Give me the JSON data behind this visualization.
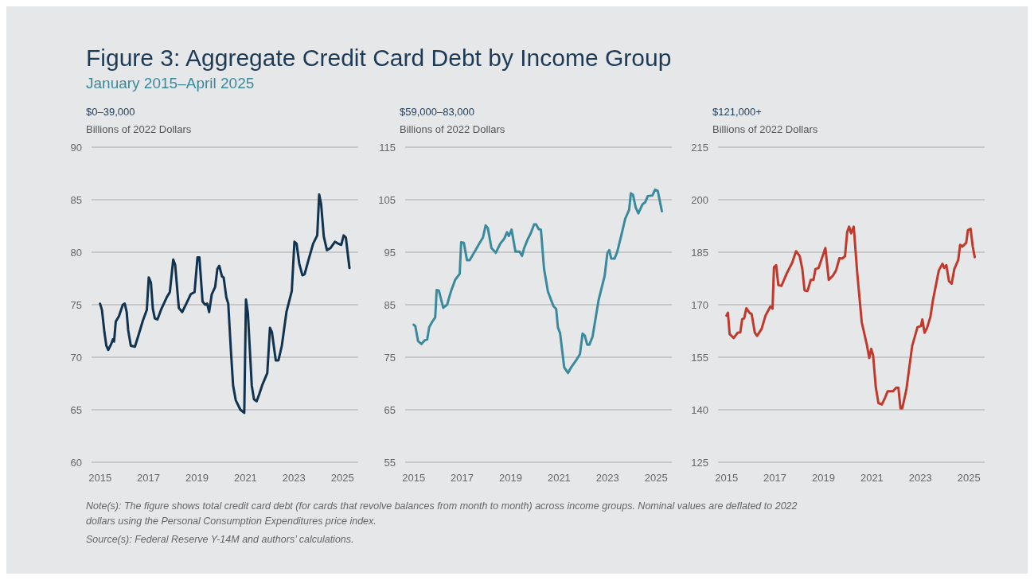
{
  "chart_data": [
    {
      "type": "other",
      "title": "Figure 3: Aggregate Credit Card Debt by Income Group",
      "subtitle": "January 2015–April 2025",
      "annotations": [
        "Note(s): The figure shows total credit card debt (for cards that revolve balances from month to month) across income groups. Nominal values are deflated to 2022 dollars using the Personal Consumption Expenditures price index.",
        "Source(s): Federal Reserve Y-14M and authors’ calculations."
      ]
    },
    {
      "type": "line",
      "title": "$0–39,000",
      "ylabel": "Billions of 2022 Dollars",
      "xlim": [
        2014.65,
        2025.65
      ],
      "ylim": [
        60,
        90
      ],
      "xticks": [
        2015,
        2017,
        2019,
        2021,
        2023,
        2025
      ],
      "yticks": [
        60,
        65,
        70,
        75,
        80,
        85,
        90
      ],
      "grid": "y",
      "x": [
        2015.0,
        2015.08,
        2015.18,
        2015.26,
        2015.34,
        2015.45,
        2015.53,
        2015.58,
        2015.65,
        2015.78,
        2015.94,
        2016.02,
        2016.1,
        2016.16,
        2016.27,
        2016.44,
        2016.6,
        2016.77,
        2016.93,
        2017.01,
        2017.1,
        2017.18,
        2017.26,
        2017.37,
        2017.53,
        2017.75,
        2017.88,
        2018.02,
        2018.1,
        2018.25,
        2018.39,
        2018.58,
        2018.74,
        2018.9,
        2019.02,
        2019.1,
        2019.23,
        2019.34,
        2019.42,
        2019.5,
        2019.61,
        2019.75,
        2019.84,
        2019.92,
        2020.03,
        2020.1,
        2020.21,
        2020.29,
        2020.4,
        2020.49,
        2020.6,
        2020.79,
        2020.95,
        2021.02,
        2021.1,
        2021.26,
        2021.35,
        2021.46,
        2021.57,
        2021.7,
        2021.9,
        2022.01,
        2022.09,
        2022.25,
        2022.36,
        2022.5,
        2022.69,
        2022.91,
        2023.02,
        2023.11,
        2023.22,
        2023.35,
        2023.44,
        2023.58,
        2023.79,
        2023.96,
        2024.04,
        2024.12,
        2024.23,
        2024.36,
        2024.51,
        2024.69,
        2024.84,
        2024.95,
        2025.05,
        2025.14,
        2025.29
      ],
      "series": [
        {
          "color": "#0f3350",
          "values": [
            75.1,
            74.5,
            72.4,
            71.1,
            70.7,
            71.2,
            71.7,
            71.5,
            73.4,
            73.9,
            75.0,
            75.1,
            74.3,
            72.6,
            71.1,
            71.0,
            72.2,
            73.5,
            74.5,
            77.6,
            77.1,
            74.6,
            73.7,
            73.6,
            74.6,
            75.7,
            76.2,
            79.3,
            78.8,
            74.7,
            74.3,
            75.2,
            76.0,
            76.2,
            79.5,
            79.5,
            75.3,
            75.0,
            75.1,
            74.3,
            76.0,
            76.7,
            78.4,
            78.7,
            77.7,
            77.6,
            75.7,
            75.1,
            70.6,
            67.3,
            65.9,
            65.0,
            64.7,
            75.5,
            74.2,
            67.3,
            66.0,
            65.8,
            66.5,
            67.4,
            68.5,
            72.8,
            72.4,
            69.7,
            69.7,
            71.1,
            74.3,
            76.3,
            81.0,
            80.8,
            78.9,
            77.8,
            77.9,
            79.1,
            80.8,
            81.6,
            85.5,
            84.6,
            81.5,
            80.2,
            80.4,
            81.0,
            80.8,
            80.7,
            81.6,
            81.4,
            78.5
          ]
        }
      ]
    },
    {
      "type": "line",
      "title": "$59,000–83,000",
      "ylabel": "Billions of 2022 Dollars",
      "xlim": [
        2014.65,
        2025.65
      ],
      "ylim": [
        55,
        115
      ],
      "xticks": [
        2015,
        2017,
        2019,
        2021,
        2023,
        2025
      ],
      "yticks": [
        55,
        65,
        75,
        85,
        95,
        105,
        115
      ],
      "grid": "y",
      "x": [
        2015.0,
        2015.07,
        2015.18,
        2015.32,
        2015.45,
        2015.56,
        2015.64,
        2015.76,
        2015.89,
        2015.95,
        2016.04,
        2016.22,
        2016.38,
        2016.55,
        2016.71,
        2016.9,
        2016.96,
        2017.07,
        2017.2,
        2017.31,
        2017.48,
        2017.73,
        2017.86,
        2017.97,
        2018.06,
        2018.21,
        2018.39,
        2018.57,
        2018.74,
        2018.85,
        2018.93,
        2019.04,
        2019.2,
        2019.37,
        2019.47,
        2019.56,
        2019.7,
        2019.83,
        2019.97,
        2020.05,
        2020.16,
        2020.25,
        2020.38,
        2020.54,
        2020.77,
        2020.88,
        2020.95,
        2021.04,
        2021.21,
        2021.37,
        2021.5,
        2021.7,
        2021.86,
        2021.97,
        2022.06,
        2022.16,
        2022.25,
        2022.38,
        2022.63,
        2022.88,
        2022.99,
        2023.07,
        2023.15,
        2023.29,
        2023.4,
        2023.56,
        2023.73,
        2023.89,
        2023.96,
        2024.05,
        2024.16,
        2024.27,
        2024.44,
        2024.55,
        2024.66,
        2024.85,
        2024.96,
        2025.07,
        2025.24
      ],
      "series": [
        {
          "color": "#3a8a9e",
          "values": [
            81.2,
            80.9,
            78.1,
            77.5,
            78.2,
            78.4,
            80.7,
            81.7,
            82.6,
            87.8,
            87.7,
            84.4,
            85.0,
            87.7,
            89.7,
            90.9,
            96.9,
            96.8,
            93.5,
            93.5,
            94.8,
            96.8,
            97.8,
            100.1,
            99.6,
            95.8,
            94.9,
            96.6,
            97.6,
            98.8,
            98.1,
            99.3,
            95.1,
            95.1,
            94.3,
            95.8,
            97.4,
            98.6,
            100.3,
            100.3,
            99.4,
            99.3,
            91.8,
            87.5,
            84.7,
            84.2,
            80.7,
            79.6,
            73.1,
            72.0,
            73.1,
            74.4,
            75.6,
            79.5,
            79.1,
            77.4,
            77.4,
            78.9,
            85.9,
            90.5,
            94.8,
            95.4,
            93.8,
            93.8,
            95.1,
            98.1,
            101.4,
            103.1,
            106.2,
            105.9,
            103.5,
            102.4,
            104.1,
            104.5,
            105.7,
            105.8,
            106.9,
            106.7,
            102.8
          ]
        }
      ]
    },
    {
      "type": "line",
      "title": "$121,000+",
      "ylabel": "Billions of 2022 Dollars",
      "xlim": [
        2014.65,
        2025.65
      ],
      "ylim": [
        125,
        215
      ],
      "xticks": [
        2015,
        2017,
        2019,
        2021,
        2023,
        2025
      ],
      "yticks": [
        125,
        140,
        155,
        170,
        185,
        200,
        215
      ],
      "grid": "y",
      "x": [
        2015.0,
        2015.06,
        2015.13,
        2015.3,
        2015.46,
        2015.57,
        2015.65,
        2015.73,
        2015.82,
        2015.95,
        2016.04,
        2016.17,
        2016.26,
        2016.45,
        2016.61,
        2016.81,
        2016.9,
        2016.96,
        2017.05,
        2017.14,
        2017.27,
        2017.49,
        2017.71,
        2017.87,
        2018.02,
        2018.13,
        2018.22,
        2018.34,
        2018.48,
        2018.59,
        2018.67,
        2018.8,
        2019.08,
        2019.22,
        2019.39,
        2019.52,
        2019.66,
        2019.78,
        2019.89,
        2019.98,
        2020.06,
        2020.14,
        2020.25,
        2020.39,
        2020.58,
        2020.78,
        2020.89,
        2020.97,
        2021.05,
        2021.16,
        2021.27,
        2021.41,
        2021.54,
        2021.65,
        2021.87,
        2022.0,
        2022.09,
        2022.18,
        2022.25,
        2022.42,
        2022.66,
        2022.88,
        2023.02,
        2023.08,
        2023.17,
        2023.28,
        2023.41,
        2023.52,
        2023.76,
        2023.91,
        2023.98,
        2024.07,
        2024.18,
        2024.29,
        2024.4,
        2024.56,
        2024.64,
        2024.73,
        2024.89,
        2024.96,
        2025.07,
        2025.16,
        2025.24
      ],
      "series": [
        {
          "color": "#c0392b",
          "values": [
            166.9,
            167.7,
            161.6,
            160.5,
            162.0,
            162.1,
            165.9,
            166.1,
            169.0,
            167.7,
            167.3,
            162.0,
            161.1,
            163.1,
            166.9,
            169.5,
            168.9,
            180.7,
            181.3,
            175.6,
            175.4,
            179.0,
            182.0,
            185.3,
            183.9,
            180.2,
            174.1,
            173.9,
            177.1,
            177.1,
            180.2,
            180.5,
            186.2,
            177.1,
            178.3,
            179.8,
            183.3,
            183.2,
            183.9,
            190.8,
            192.3,
            190.4,
            192.3,
            179.4,
            165.0,
            158.9,
            154.8,
            157.4,
            155.5,
            146.4,
            141.9,
            141.5,
            143.4,
            145.3,
            145.3,
            146.3,
            146.3,
            140.4,
            140.4,
            145.7,
            158.2,
            163.6,
            163.9,
            165.8,
            162.0,
            163.5,
            166.5,
            171.4,
            179.8,
            181.7,
            180.5,
            181.3,
            176.7,
            176.0,
            180.2,
            182.8,
            187.1,
            186.6,
            187.7,
            191.3,
            191.7,
            186.6,
            183.6
          ]
        }
      ]
    }
  ]
}
